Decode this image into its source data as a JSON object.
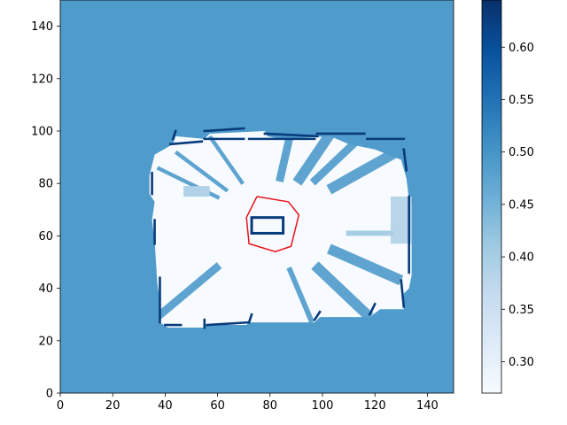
{
  "chart_data": {
    "type": "heatmap",
    "title": "",
    "xlabel": "",
    "ylabel": "",
    "xlim": [
      0,
      150
    ],
    "ylim": [
      0,
      150
    ],
    "x_ticks": [
      0,
      20,
      40,
      60,
      80,
      100,
      120,
      140
    ],
    "y_ticks": [
      0,
      20,
      40,
      60,
      80,
      100,
      120,
      140
    ],
    "x_tick_labels": [
      "0",
      "20",
      "40",
      "60",
      "80",
      "100",
      "120",
      "140"
    ],
    "y_tick_labels": [
      "0",
      "20",
      "40",
      "60",
      "80",
      "100",
      "120",
      "140"
    ],
    "colormap": "Blues",
    "color_range": [
      0.27,
      0.645
    ],
    "colorbar_ticks": [
      0.3,
      0.35,
      0.4,
      0.45,
      0.5,
      0.55,
      0.6
    ],
    "colorbar_tick_labels": [
      "0.30",
      "0.35",
      "0.40",
      "0.45",
      "0.50",
      "0.55",
      "0.60"
    ],
    "background_value": 0.49,
    "free_space_value": 0.27,
    "wall_value": 0.63,
    "free_region_outline": [
      [
        41,
        25
      ],
      [
        55,
        25
      ],
      [
        55,
        26
      ],
      [
        71,
        26
      ],
      [
        72,
        27
      ],
      [
        97,
        27
      ],
      [
        99,
        29
      ],
      [
        118,
        29
      ],
      [
        122,
        32
      ],
      [
        131,
        32
      ],
      [
        131,
        38
      ],
      [
        133,
        40
      ],
      [
        134,
        45
      ],
      [
        134,
        72
      ],
      [
        133,
        74
      ],
      [
        132,
        82
      ],
      [
        130,
        89
      ],
      [
        120,
        93
      ],
      [
        110,
        95
      ],
      [
        103,
        98
      ],
      [
        84,
        97
      ],
      [
        79,
        98
      ],
      [
        78,
        100
      ],
      [
        57,
        99
      ],
      [
        55,
        97
      ],
      [
        44,
        98
      ],
      [
        43,
        95
      ],
      [
        36,
        91
      ],
      [
        34,
        83
      ],
      [
        34,
        76
      ],
      [
        36,
        73
      ],
      [
        35,
        66
      ],
      [
        36,
        58
      ],
      [
        37,
        42
      ],
      [
        38,
        35
      ],
      [
        38,
        27
      ]
    ],
    "wall_segments": [
      [
        [
          42,
          95
        ],
        [
          54,
          96
        ]
      ],
      [
        [
          55,
          97
        ],
        [
          70,
          97
        ]
      ],
      [
        [
          72,
          97
        ],
        [
          97,
          97
        ]
      ],
      [
        [
          98,
          99
        ],
        [
          116,
          99
        ]
      ],
      [
        [
          117,
          97
        ],
        [
          131,
          97
        ]
      ],
      [
        [
          131,
          93
        ],
        [
          132,
          85
        ]
      ],
      [
        [
          133,
          75
        ],
        [
          133,
          46
        ]
      ],
      [
        [
          130,
          43
        ],
        [
          131,
          33
        ]
      ],
      [
        [
          118,
          30
        ],
        [
          120,
          34
        ]
      ],
      [
        [
          97,
          28
        ],
        [
          99,
          31
        ]
      ],
      [
        [
          72,
          27
        ],
        [
          73,
          30
        ]
      ],
      [
        [
          55,
          25
        ],
        [
          55,
          28
        ]
      ],
      [
        [
          38,
          27
        ],
        [
          38,
          44
        ]
      ],
      [
        [
          36,
          57
        ],
        [
          36,
          66
        ]
      ],
      [
        [
          35,
          76
        ],
        [
          35,
          84
        ]
      ],
      [
        [
          43,
          97
        ],
        [
          44,
          100
        ]
      ],
      [
        [
          55,
          100
        ],
        [
          70,
          101
        ]
      ],
      [
        [
          78,
          99
        ],
        [
          98,
          98
        ]
      ],
      [
        [
          40,
          26
        ],
        [
          46,
          26
        ]
      ],
      [
        [
          56,
          26
        ],
        [
          72,
          27
        ]
      ]
    ],
    "light_patches": [
      {
        "x": 126,
        "y": 57,
        "w": 8,
        "h": 18,
        "value": 0.38
      },
      {
        "x": 109,
        "y": 60,
        "w": 18,
        "h": 2,
        "value": 0.4
      },
      {
        "x": 47,
        "y": 75,
        "w": 10,
        "h": 4,
        "value": 0.39
      }
    ],
    "shadow_rays": [
      {
        "from": [
          80,
          65
        ],
        "to": [
          44,
          92
        ],
        "width": 3
      },
      {
        "from": [
          80,
          65
        ],
        "to": [
          57,
          98
        ],
        "width": 3
      },
      {
        "from": [
          80,
          65
        ],
        "to": [
          88,
          100
        ],
        "width": 6
      },
      {
        "from": [
          80,
          65
        ],
        "to": [
          103,
          99
        ],
        "width": 8
      },
      {
        "from": [
          80,
          65
        ],
        "to": [
          116,
          99
        ],
        "width": 6
      },
      {
        "from": [
          80,
          65
        ],
        "to": [
          130,
          93
        ],
        "width": 8
      },
      {
        "from": [
          80,
          65
        ],
        "to": [
          130,
          43
        ],
        "width": 8
      },
      {
        "from": [
          80,
          65
        ],
        "to": [
          118,
          29
        ],
        "width": 8
      },
      {
        "from": [
          80,
          65
        ],
        "to": [
          96,
          27
        ],
        "width": 4
      },
      {
        "from": [
          80,
          65
        ],
        "to": [
          37,
          29
        ],
        "width": 6
      },
      {
        "from": [
          80,
          65
        ],
        "to": [
          37,
          86
        ],
        "width": 3
      }
    ],
    "obstacle": {
      "x": 73,
      "y": 61,
      "w": 12,
      "h": 6
    },
    "robot_path": [
      [
        75,
        75
      ],
      [
        87,
        73
      ],
      [
        91,
        68
      ],
      [
        88,
        56
      ],
      [
        82,
        54
      ],
      [
        72,
        57
      ],
      [
        71,
        67
      ],
      [
        75,
        75
      ]
    ],
    "robot_path_color": "#e8141a"
  }
}
